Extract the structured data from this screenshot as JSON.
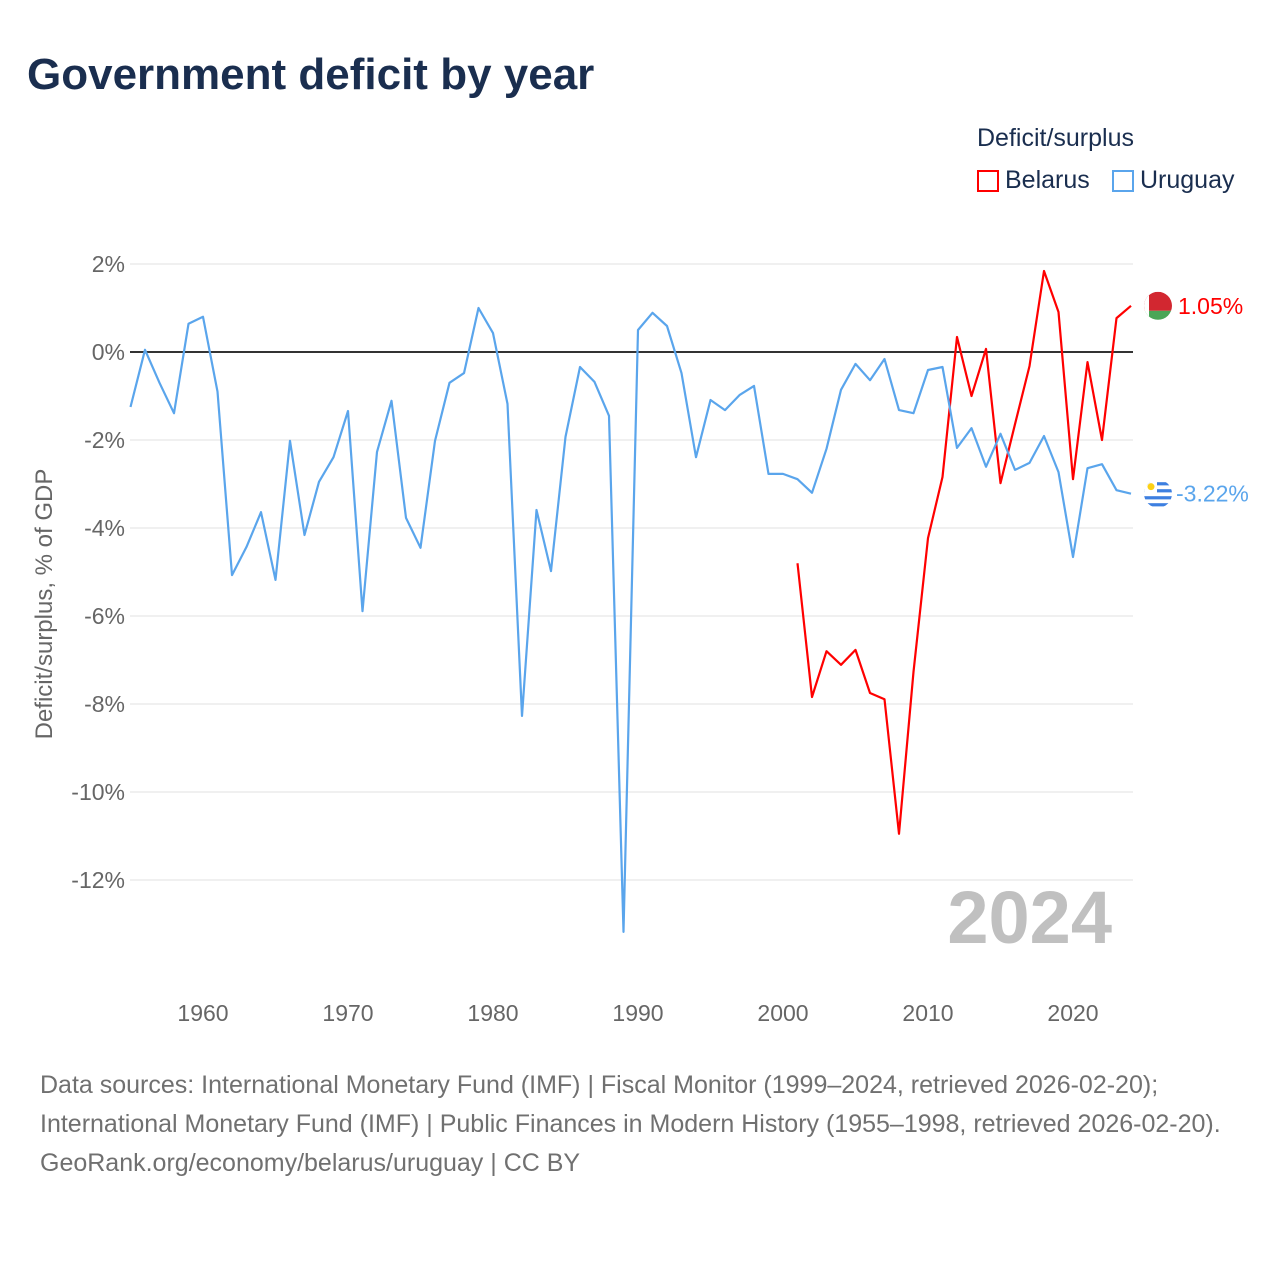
{
  "chart_data": {
    "type": "line",
    "title": "Government deficit by year",
    "xlabel": "",
    "ylabel": "Deficit/surplus, % of GDP",
    "xlim": [
      1955,
      2024
    ],
    "ylim": [
      -13.5,
      2.5
    ],
    "yticks": [
      2,
      0,
      -2,
      -4,
      -6,
      -8,
      -10,
      -12
    ],
    "ytick_labels": [
      "2%",
      "0%",
      "-2%",
      "-4%",
      "-6%",
      "-8%",
      "-10%",
      "-12%"
    ],
    "xticks": [
      1960,
      1970,
      1980,
      1990,
      2000,
      2010,
      2020
    ],
    "xtick_labels": [
      "1960",
      "1970",
      "1980",
      "1990",
      "2000",
      "2010",
      "2020"
    ],
    "legend_title": "Deficit/surplus",
    "legend_position": "top-right",
    "year_watermark": "2024",
    "series": [
      {
        "name": "Belarus",
        "color": "#ff0000",
        "end_label": "1.05%",
        "x_start": 2001,
        "values": [
          -4.8,
          -7.84,
          -6.8,
          -7.11,
          -6.77,
          -7.75,
          -7.89,
          -10.95,
          -7.27,
          -4.23,
          -2.84,
          0.34,
          -1.0,
          0.07,
          -2.98,
          -1.64,
          -0.32,
          1.84,
          0.91,
          -2.89,
          -0.23,
          -2.0,
          0.77,
          1.05
        ]
      },
      {
        "name": "Uruguay",
        "color": "#5aa5ec",
        "end_label": "-3.22%",
        "x_start": 1955,
        "values": [
          -1.25,
          0.05,
          -0.7,
          -1.39,
          0.64,
          0.8,
          -0.9,
          -5.07,
          -4.43,
          -3.64,
          -5.18,
          -2.02,
          -4.16,
          -2.95,
          -2.39,
          -1.34,
          -5.89,
          -2.27,
          -1.11,
          -3.77,
          -4.45,
          -2.02,
          -0.7,
          -0.48,
          1.0,
          0.43,
          -1.18,
          -8.27,
          -3.59,
          -4.98,
          -1.93,
          -0.34,
          -0.68,
          -1.45,
          -13.18,
          0.5,
          0.89,
          0.59,
          -0.48,
          -2.39,
          -1.09,
          -1.32,
          -0.98,
          -0.77,
          -2.77,
          -2.77,
          -2.89,
          -3.2,
          -2.2,
          -0.86,
          -0.27,
          -0.64,
          -0.16,
          -1.32,
          -1.39,
          -0.41,
          -0.34,
          -2.18,
          -1.73,
          -2.61,
          -1.86,
          -2.68,
          -2.52,
          -1.91,
          -2.73,
          -4.66,
          -2.64,
          -2.55,
          -3.14,
          -3.22
        ]
      }
    ]
  },
  "footer": {
    "sources": "Data sources: International Monetary Fund (IMF) | Fiscal Monitor (1999–2024, retrieved 2026-02-20); International Monetary Fund (IMF) | Public Finances in Modern History (1955–1998, retrieved 2026-02-20).",
    "link": "GeoRank.org/economy/belarus/uruguay | CC BY"
  }
}
